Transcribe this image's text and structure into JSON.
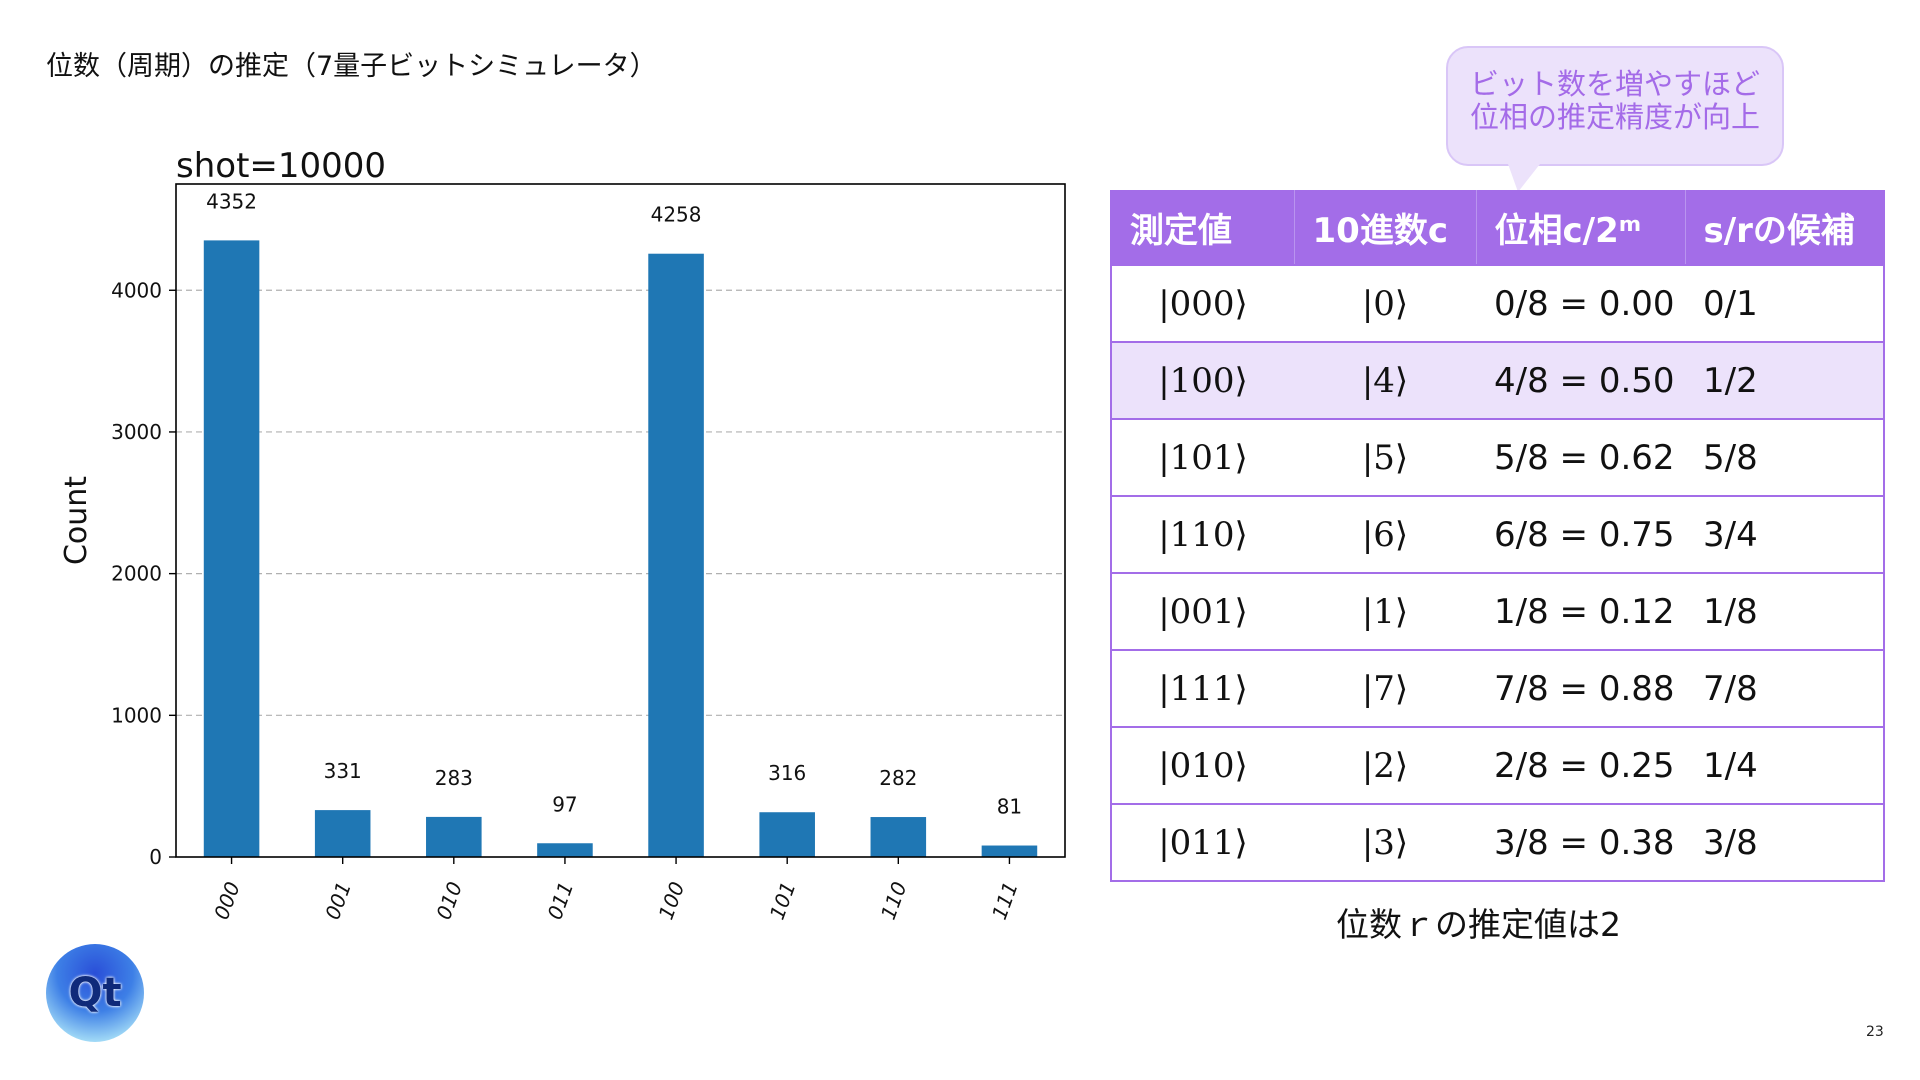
{
  "slide": {
    "title": "位数（周期）の推定（7量子ビットシミュレータ）",
    "shot_label": "shot=10000",
    "callout": [
      "ビット数を増やすほど",
      "位相の推定精度が向上"
    ],
    "conclusion": "位数ｒの推定値は2",
    "logo_text": "Qt",
    "page_number": "23"
  },
  "table": {
    "headers": [
      "測定値",
      "10進数c",
      "位相c/2ᵐ",
      "s/rの候補"
    ],
    "rows": [
      {
        "state": "|000⟩",
        "decimal": "|0⟩",
        "phase": "0/8 = 0.00",
        "candidate": "0/1",
        "highlight": false
      },
      {
        "state": "|100⟩",
        "decimal": "|4⟩",
        "phase": "4/8 = 0.50",
        "candidate": "1/2",
        "highlight": true
      },
      {
        "state": "|101⟩",
        "decimal": "|5⟩",
        "phase": "5/8 = 0.62",
        "candidate": "5/8",
        "highlight": false
      },
      {
        "state": "|110⟩",
        "decimal": "|6⟩",
        "phase": "6/8 = 0.75",
        "candidate": "3/4",
        "highlight": false
      },
      {
        "state": "|001⟩",
        "decimal": "|1⟩",
        "phase": "1/8 = 0.12",
        "candidate": "1/8",
        "highlight": false
      },
      {
        "state": "|111⟩",
        "decimal": "|7⟩",
        "phase": "7/8 = 0.88",
        "candidate": "7/8",
        "highlight": false
      },
      {
        "state": "|010⟩",
        "decimal": "|2⟩",
        "phase": "2/8 = 0.25",
        "candidate": "1/4",
        "highlight": false
      },
      {
        "state": "|011⟩",
        "decimal": "|3⟩",
        "phase": "3/8 = 0.38",
        "candidate": "3/8",
        "highlight": false
      }
    ]
  },
  "colors": {
    "bar": "#1f77b4",
    "accent": "#a36de8",
    "highlight_row": "#ece2fb",
    "callout_text": "#a46be8"
  },
  "chart_data": {
    "type": "bar",
    "categories": [
      "000",
      "001",
      "010",
      "011",
      "100",
      "101",
      "110",
      "111"
    ],
    "values": [
      4352,
      331,
      283,
      97,
      4258,
      316,
      282,
      81
    ],
    "title": "",
    "xlabel": "",
    "ylabel": "Count",
    "ylim": [
      0,
      4750
    ],
    "yticks": [
      0,
      1000,
      2000,
      3000,
      4000
    ],
    "grid": "horizontal-dashed",
    "data_labels": true,
    "tick_label_rotation": "rotated"
  }
}
